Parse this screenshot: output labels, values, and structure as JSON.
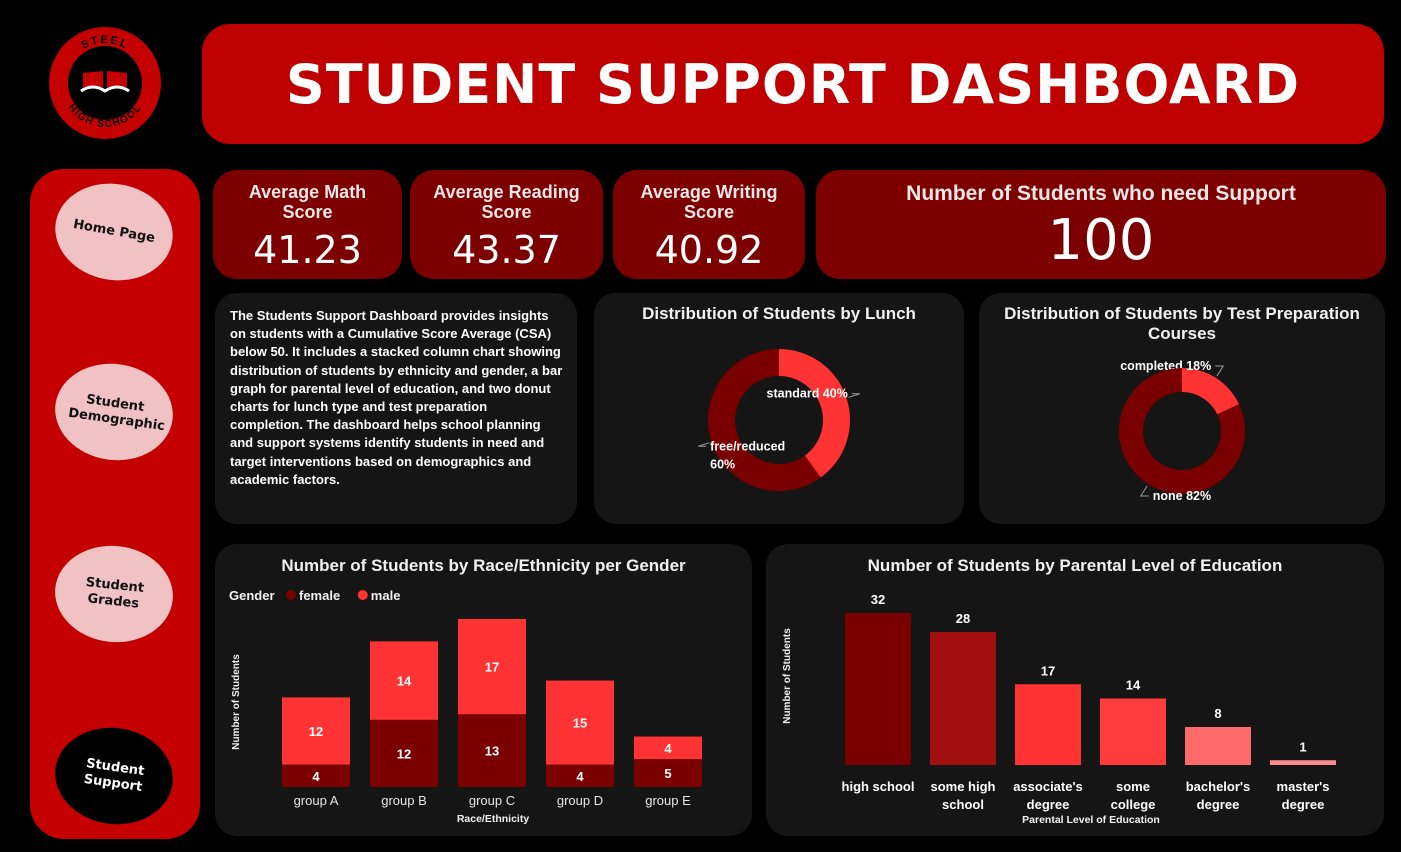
{
  "logo": {
    "top_text": "STEEL",
    "bottom_text": "HIGH SCHOOL"
  },
  "header": {
    "title": "STUDENT SUPPORT DASHBOARD"
  },
  "sidebar": {
    "items": [
      {
        "label": "Home Page",
        "active": false
      },
      {
        "label": "Student Demographic",
        "active": false
      },
      {
        "label": "Student Grades",
        "active": false
      },
      {
        "label": "Student Support",
        "active": true
      }
    ]
  },
  "kpis": {
    "math": {
      "label": "Average Math Score",
      "value": "41.23"
    },
    "reading": {
      "label": "Average Reading Score",
      "value": "43.37"
    },
    "writing": {
      "label": "Average Writing Score",
      "value": "40.92"
    },
    "support": {
      "label": "Number of Students who need Support",
      "value": "100"
    }
  },
  "description": "The Students Support Dashboard provides insights on students with a Cumulative Score Average (CSA) below 50. It includes a stacked column chart showing distribution of students by ethnicity and gender, a bar graph for parental level of education, and two donut charts for lunch type and test preparation completion. The dashboard helps school planning and support systems identify students in need and target interventions based on demographics and academic factors.",
  "chart_data": [
    {
      "id": "lunch",
      "type": "pie",
      "title": "Distribution of Students by Lunch",
      "slices": [
        {
          "label": "standard",
          "value": 40,
          "display": "standard 40%",
          "color": "#ff3333"
        },
        {
          "label": "free/reduced",
          "value": 60,
          "display": "free/reduced 60%",
          "color": "#7a0000"
        }
      ]
    },
    {
      "id": "testprep",
      "type": "pie",
      "title": "Distribution of Students by Test Preparation Courses",
      "slices": [
        {
          "label": "completed",
          "value": 18,
          "display": "completed 18%",
          "color": "#ff3333"
        },
        {
          "label": "none",
          "value": 82,
          "display": "none 82%",
          "color": "#7a0000"
        }
      ]
    },
    {
      "id": "race",
      "type": "bar",
      "stacked": true,
      "title": "Number of Students by Race/Ethnicity per Gender",
      "xlabel": "Race/Ethnicity",
      "ylabel": "Number of Students",
      "legend_title": "Gender",
      "categories": [
        "group A",
        "group B",
        "group C",
        "group D",
        "group E"
      ],
      "series": [
        {
          "name": "female",
          "values": [
            4,
            12,
            13,
            4,
            5
          ],
          "color": "#7a0000"
        },
        {
          "name": "male",
          "values": [
            12,
            14,
            17,
            15,
            4
          ],
          "color": "#ff3333"
        }
      ],
      "ylim": [
        0,
        30
      ]
    },
    {
      "id": "parental",
      "type": "bar",
      "title": "Number of Students by Parental Level of Education",
      "xlabel": "Parental Level of Education",
      "ylabel": "Number of Students",
      "categories": [
        "high school",
        "some high school",
        "associate's degree",
        "some college",
        "bachelor's degree",
        "master's degree"
      ],
      "category_lines": [
        [
          "high school"
        ],
        [
          "some high",
          "school"
        ],
        [
          "associate's",
          "degree"
        ],
        [
          "some",
          "college"
        ],
        [
          "bachelor's",
          "degree"
        ],
        [
          "master's",
          "degree"
        ]
      ],
      "values": [
        32,
        28,
        17,
        14,
        8,
        1
      ],
      "colors": [
        "#7a0000",
        "#a10f0f",
        "#ff3333",
        "#ff3b3b",
        "#ff6b6b",
        "#ff8c8c"
      ],
      "ylim": [
        0,
        32
      ]
    }
  ]
}
